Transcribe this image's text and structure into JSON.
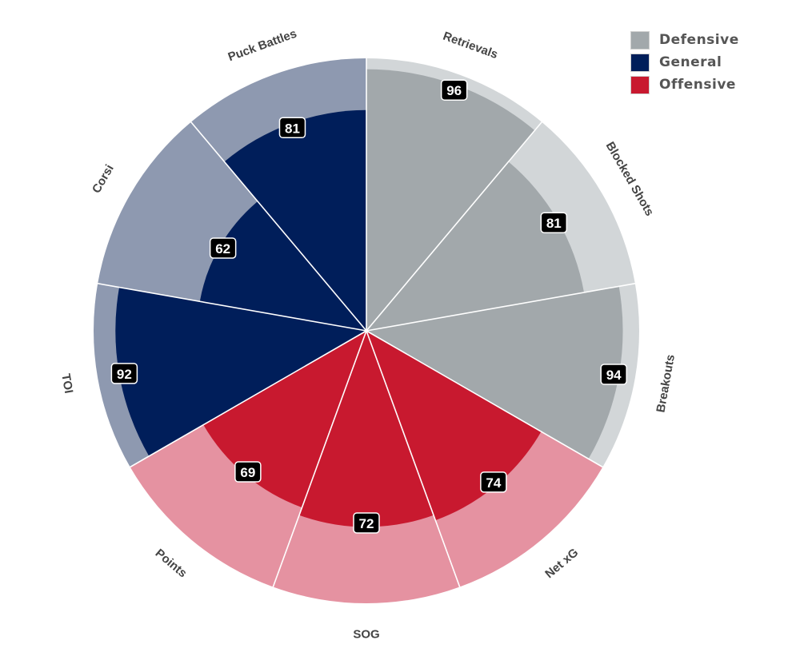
{
  "chart_data": {
    "type": "radial-bar",
    "title": "",
    "scale_max": 100,
    "groups": [
      {
        "name": "Defensive",
        "color": "#a2a8ab",
        "background": "#d2d6d8"
      },
      {
        "name": "General",
        "color": "#001e5a",
        "background": "#8e99b0"
      },
      {
        "name": "Offensive",
        "color": "#c8192f",
        "background": "#e592a1"
      }
    ],
    "categories": [
      {
        "label": "Retrievals",
        "value": 96,
        "group": "Defensive"
      },
      {
        "label": "Blocked Shots",
        "value": 81,
        "group": "Defensive"
      },
      {
        "label": "Breakouts",
        "value": 94,
        "group": "Defensive"
      },
      {
        "label": "Net xG",
        "value": 74,
        "group": "Offensive"
      },
      {
        "label": "SOG",
        "value": 72,
        "group": "Offensive"
      },
      {
        "label": "Points",
        "value": 69,
        "group": "Offensive"
      },
      {
        "label": "TOI",
        "value": 92,
        "group": "General"
      },
      {
        "label": "Corsi",
        "value": 62,
        "group": "General"
      },
      {
        "label": "Puck Battles",
        "value": 81,
        "group": "General"
      }
    ]
  }
}
